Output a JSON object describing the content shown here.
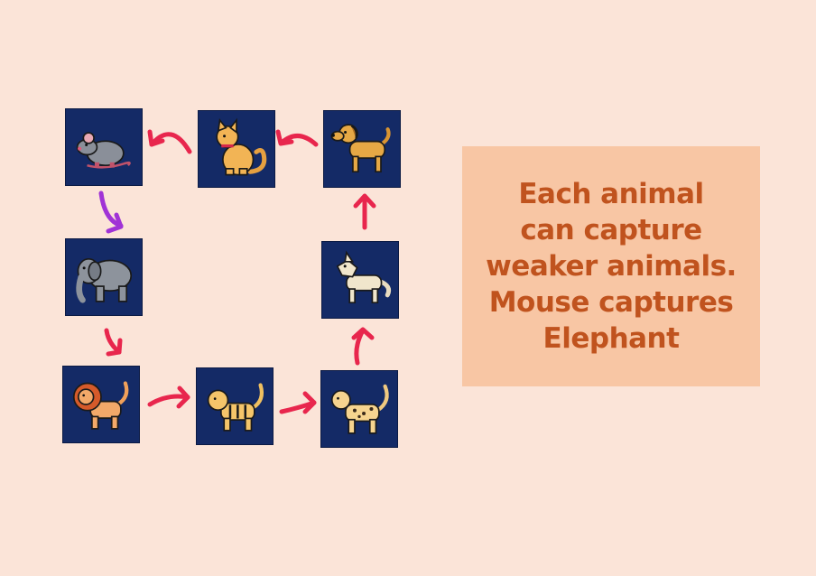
{
  "rule_text": {
    "lines": [
      "Each animal",
      "can capture",
      "weaker animals.",
      "Mouse captures",
      "Elephant"
    ]
  },
  "animals": [
    "mouse",
    "cat",
    "dog",
    "wolf",
    "leopard",
    "tiger",
    "lion",
    "elephant"
  ],
  "colors": {
    "background": "#fbe4d8",
    "tile": "#142a66",
    "arrow": "#e8264d",
    "special_arrow": "#a033d6",
    "rule_box": "#f8c6a4",
    "rule_text": "#c0531e"
  }
}
